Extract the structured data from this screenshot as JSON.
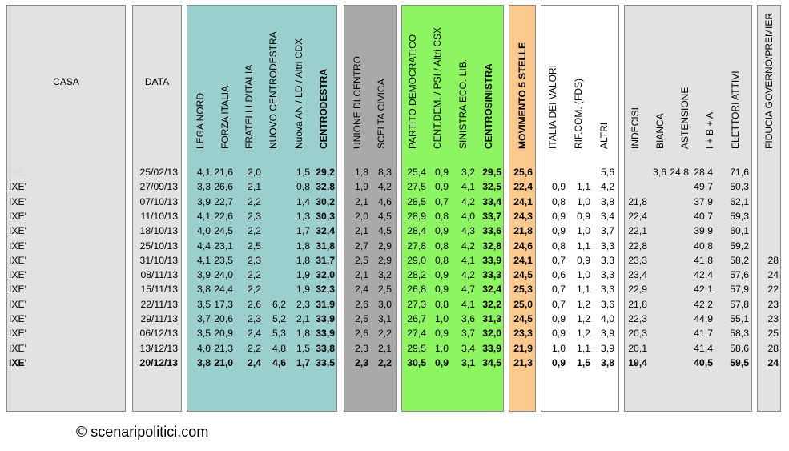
{
  "headers": {
    "casa": "CASA",
    "data": "DATA",
    "cols": [
      {
        "key": "lega_nord",
        "label": "LEGA NORD",
        "bold": false
      },
      {
        "key": "forza_italia",
        "label": "FORZA ITALIA",
        "bold": false
      },
      {
        "key": "fratelli_italia",
        "label": "FRATELLI D'ITALIA",
        "bold": false
      },
      {
        "key": "nuovo_cd",
        "label": "NUOVO  CENTRODESTRA",
        "bold": false
      },
      {
        "key": "nuova_an",
        "label": "Nuova AN / LD / Altri CDX",
        "bold": false
      },
      {
        "key": "centrodestra",
        "label": "CENTRODESTRA",
        "bold": true
      },
      {
        "key": "udc",
        "label": "UNIONE DI CENTRO",
        "bold": false
      },
      {
        "key": "scelta_civica",
        "label": "SCELTA CIVICA",
        "bold": false
      },
      {
        "key": "pd",
        "label": "PARTITO DEMOCRATICO",
        "bold": false
      },
      {
        "key": "cd_psi",
        "label": "CENT.DEM. / PSI / Altri CSX",
        "bold": false
      },
      {
        "key": "sel",
        "label": "SINISTRA ECO. LIB.",
        "bold": false
      },
      {
        "key": "centrosinistra",
        "label": "CENTROSINISTRA",
        "bold": true
      },
      {
        "key": "m5s",
        "label": "MOVIMENTO 5 STELLE",
        "bold": true
      },
      {
        "key": "idv",
        "label": "ITALIA DEI VALORI",
        "bold": false
      },
      {
        "key": "rc",
        "label": "RIF.COM. (FDS)",
        "bold": false
      },
      {
        "key": "altri",
        "label": "ALTRI",
        "bold": false
      },
      {
        "key": "indecisi",
        "label": "INDECISI",
        "bold": false
      },
      {
        "key": "bianca",
        "label": "BIANCA",
        "bold": false
      },
      {
        "key": "astensione",
        "label": "ASTENSIONE",
        "bold": false
      },
      {
        "key": "ibpa",
        "label": "I + B + A",
        "bold": false
      },
      {
        "key": "elettori",
        "label": "ELETTORI ATTIVI",
        "bold": false
      },
      {
        "key": "fiducia",
        "label": "FIDUCIA GOVERNO/PREMIER",
        "bold": false
      }
    ]
  },
  "colors": {
    "gray_panel": "#e2e2e2",
    "teal_panel": "#9bcfce",
    "dark_gray_panel": "#a9a9a9",
    "green_panel": "#8cf561",
    "orange_panel": "#fcc98f",
    "white_panel": "#ffffff"
  },
  "rows": [
    {
      "casa": "IXE'",
      "data": "25/02/13",
      "vals": [
        "4,1",
        "21,6",
        "2,0",
        "",
        "1,5",
        "29,2",
        "1,8",
        "8,3",
        "25,4",
        "0,9",
        "3,2",
        "29,5",
        "25,6",
        "",
        "",
        "5,6",
        "",
        "3,6",
        "24,8",
        "28,4",
        "71,6",
        ""
      ],
      "faded": true,
      "bold": false
    },
    {
      "casa": "IXE'",
      "data": "27/09/13",
      "vals": [
        "3,3",
        "26,6",
        "2,1",
        "",
        "0,8",
        "32,8",
        "1,9",
        "4,2",
        "27,5",
        "0,9",
        "4,1",
        "32,5",
        "22,4",
        "0,9",
        "1,1",
        "4,2",
        "",
        "",
        "",
        "49,7",
        "50,3",
        ""
      ],
      "faded": false,
      "bold": false
    },
    {
      "casa": "IXE'",
      "data": "07/10/13",
      "vals": [
        "3,9",
        "22,7",
        "2,2",
        "",
        "1,4",
        "30,2",
        "2,1",
        "4,6",
        "28,5",
        "0,7",
        "4,2",
        "33,4",
        "24,1",
        "0,8",
        "1,0",
        "3,8",
        "21,8",
        "",
        "",
        "37,9",
        "62,1",
        ""
      ],
      "faded": false,
      "bold": false
    },
    {
      "casa": "IXE'",
      "data": "11/10/13",
      "vals": [
        "4,1",
        "22,6",
        "2,3",
        "",
        "1,3",
        "30,3",
        "2,0",
        "4,5",
        "28,9",
        "0,8",
        "4,0",
        "33,7",
        "24,3",
        "0,9",
        "0,9",
        "3,4",
        "22,4",
        "",
        "",
        "40,7",
        "59,3",
        ""
      ],
      "faded": false,
      "bold": false
    },
    {
      "casa": "IXE'",
      "data": "18/10/13",
      "vals": [
        "4,0",
        "24,5",
        "2,2",
        "",
        "1,7",
        "32,4",
        "2,1",
        "4,5",
        "28,4",
        "0,9",
        "4,3",
        "33,6",
        "21,8",
        "0,9",
        "1,0",
        "3,7",
        "22,1",
        "",
        "",
        "39,9",
        "60,1",
        ""
      ],
      "faded": false,
      "bold": false
    },
    {
      "casa": "IXE'",
      "data": "25/10/13",
      "vals": [
        "4,4",
        "23,1",
        "2,5",
        "",
        "1,8",
        "31,8",
        "2,7",
        "2,9",
        "27,8",
        "0,8",
        "4,2",
        "32,8",
        "24,6",
        "0,8",
        "1,1",
        "3,3",
        "22,8",
        "",
        "",
        "40,8",
        "59,2",
        ""
      ],
      "faded": false,
      "bold": false
    },
    {
      "casa": "IXE'",
      "data": "31/10/13",
      "vals": [
        "4,1",
        "23,5",
        "2,3",
        "",
        "1,8",
        "31,7",
        "2,5",
        "2,9",
        "29,0",
        "0,8",
        "4,1",
        "33,9",
        "24,1",
        "0,7",
        "0,9",
        "3,3",
        "23,3",
        "",
        "",
        "41,8",
        "58,2",
        "28"
      ],
      "faded": false,
      "bold": false
    },
    {
      "casa": "IXE'",
      "data": "08/11/13",
      "vals": [
        "3,9",
        "24,0",
        "2,2",
        "",
        "1,9",
        "32,0",
        "2,1",
        "3,2",
        "28,2",
        "0,9",
        "4,2",
        "33,3",
        "24,5",
        "0,6",
        "1,0",
        "3,3",
        "23,4",
        "",
        "",
        "42,4",
        "57,6",
        "24"
      ],
      "faded": false,
      "bold": false
    },
    {
      "casa": "IXE'",
      "data": "15/11/13",
      "vals": [
        "3,8",
        "24,4",
        "2,2",
        "",
        "1,9",
        "32,3",
        "2,4",
        "2,5",
        "26,8",
        "0,9",
        "4,7",
        "32,4",
        "25,3",
        "0,7",
        "1,1",
        "3,3",
        "22,9",
        "",
        "",
        "42,1",
        "57,9",
        "22"
      ],
      "faded": false,
      "bold": false
    },
    {
      "casa": "IXE'",
      "data": "22/11/13",
      "vals": [
        "3,5",
        "17,3",
        "2,6",
        "6,2",
        "2,3",
        "31,9",
        "2,6",
        "3,0",
        "27,3",
        "0,8",
        "4,1",
        "32,2",
        "25,0",
        "0,7",
        "1,2",
        "3,6",
        "21,8",
        "",
        "",
        "42,2",
        "57,8",
        "23"
      ],
      "faded": false,
      "bold": false
    },
    {
      "casa": "IXE'",
      "data": "29/11/13",
      "vals": [
        "3,7",
        "20,6",
        "2,3",
        "5,2",
        "2,1",
        "33,9",
        "2,5",
        "3,1",
        "26,7",
        "1,0",
        "3,6",
        "31,3",
        "24,5",
        "0,9",
        "1,2",
        "4,0",
        "22,3",
        "",
        "",
        "44,9",
        "55,1",
        "23"
      ],
      "faded": false,
      "bold": false
    },
    {
      "casa": "IXE'",
      "data": "06/12/13",
      "vals": [
        "3,5",
        "20,9",
        "2,4",
        "5,3",
        "1,8",
        "33,9",
        "2,6",
        "2,2",
        "27,4",
        "0,9",
        "3,7",
        "32,0",
        "23,3",
        "0,9",
        "1,2",
        "3,9",
        "20,3",
        "",
        "",
        "41,7",
        "58,3",
        "25"
      ],
      "faded": false,
      "bold": false
    },
    {
      "casa": "IXE'",
      "data": "13/12/13",
      "vals": [
        "4,0",
        "21,3",
        "2,2",
        "4,8",
        "1,5",
        "33,8",
        "2,3",
        "2,1",
        "29,5",
        "1,0",
        "3,4",
        "33,9",
        "21,9",
        "1,0",
        "1,1",
        "3,9",
        "20,1",
        "",
        "",
        "41,4",
        "58,6",
        "28"
      ],
      "faded": false,
      "bold": false
    },
    {
      "casa": "IXE'",
      "data": "20/12/13",
      "vals": [
        "3,8",
        "21,0",
        "2,4",
        "4,6",
        "1,7",
        "33,5",
        "2,3",
        "2,2",
        "30,5",
        "0,9",
        "3,1",
        "34,5",
        "21,3",
        "0,9",
        "1,5",
        "3,8",
        "19,4",
        "",
        "",
        "40,5",
        "59,5",
        "24"
      ],
      "faded": false,
      "bold": true
    }
  ],
  "footer": "© scenaripolitici.com"
}
